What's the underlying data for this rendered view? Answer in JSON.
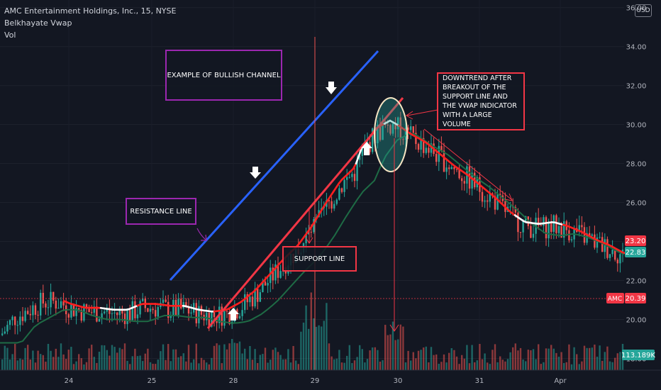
{
  "header": {
    "symbol": "AMC Entertainment Holdings, Inc., 15, NYSE",
    "indicator": "Belkhayate Vwap",
    "volume_label": "Vol"
  },
  "currency_badge": "USD",
  "annotations": {
    "bullish_channel": "EXAMPLE OF BULLISH CHANNEL",
    "resistance": "RESISTANCE LINE",
    "support": "SUPPORT LINE",
    "downtrend": "DOWNTREND AFTER BREAKOUT OF THE SUPPORT LINE AND THE VWAP INDICATOR WITH A LARGE VOLUME"
  },
  "price_labels": {
    "vwap_value": "23.20",
    "last_price": "22.83",
    "amc_tag": "AMC",
    "amc_price": "20.39",
    "volume_value": "113.189K"
  },
  "colors": {
    "up": "#26a69a",
    "down": "#ef5350",
    "vwap_red": "#ff1f1f",
    "vwap_white": "#ffffff",
    "vwap_green": "#1e6b45",
    "channel_blue": "#2962ff",
    "support_red": "#f23645",
    "annotation_purple": "#9c27b0"
  },
  "chart_data": {
    "type": "candlestick",
    "ylim": [
      17.4,
      36.1
    ],
    "y_ticks": [
      "18.00",
      "20.00",
      "22.00",
      "24.00",
      "26.00",
      "28.00",
      "30.00",
      "32.00",
      "34.00",
      "36.00"
    ],
    "y_tick_values": [
      18,
      20,
      22,
      24,
      26,
      28,
      30,
      32,
      34,
      36
    ],
    "x_labels": [
      "24",
      "25",
      "28",
      "29",
      "30",
      "31",
      "Apr"
    ],
    "vwap_anchor_path": [
      [
        0,
        19.2
      ],
      [
        20,
        20.1
      ],
      [
        40,
        20.5
      ],
      [
        60,
        20.9
      ],
      [
        80,
        20.9
      ],
      [
        100,
        20.6
      ],
      [
        120,
        20.4
      ],
      [
        140,
        20.4
      ],
      [
        160,
        20.3
      ],
      [
        180,
        20.3
      ],
      [
        200,
        20.6
      ],
      [
        220,
        20.6
      ],
      [
        240,
        20.5
      ],
      [
        260,
        20.5
      ],
      [
        280,
        20.3
      ],
      [
        300,
        20.2
      ],
      [
        320,
        20.3
      ],
      [
        340,
        20.7
      ],
      [
        360,
        21.3
      ],
      [
        380,
        22.1
      ],
      [
        400,
        22.9
      ],
      [
        420,
        23.6
      ],
      [
        440,
        24.6
      ],
      [
        460,
        25.8
      ],
      [
        480,
        26.9
      ],
      [
        500,
        27.6
      ],
      [
        510,
        28.6
      ],
      [
        520,
        29.1
      ],
      [
        530,
        29.6
      ],
      [
        540,
        29.8
      ],
      [
        550,
        30.0
      ],
      [
        560,
        29.8
      ],
      [
        580,
        29.3
      ],
      [
        600,
        28.9
      ],
      [
        620,
        28.3
      ],
      [
        640,
        27.7
      ],
      [
        660,
        27.2
      ],
      [
        680,
        26.6
      ],
      [
        700,
        26.0
      ],
      [
        720,
        25.3
      ],
      [
        740,
        24.8
      ],
      [
        760,
        24.7
      ],
      [
        780,
        24.8
      ],
      [
        800,
        24.6
      ],
      [
        820,
        24.3
      ],
      [
        840,
        23.9
      ],
      [
        860,
        23.6
      ],
      [
        880,
        23.2
      ]
    ],
    "white_segments": [
      [
        140,
        190
      ],
      [
        255,
        300
      ],
      [
        500,
        520
      ],
      [
        540,
        560
      ],
      [
        725,
        790
      ]
    ]
  }
}
